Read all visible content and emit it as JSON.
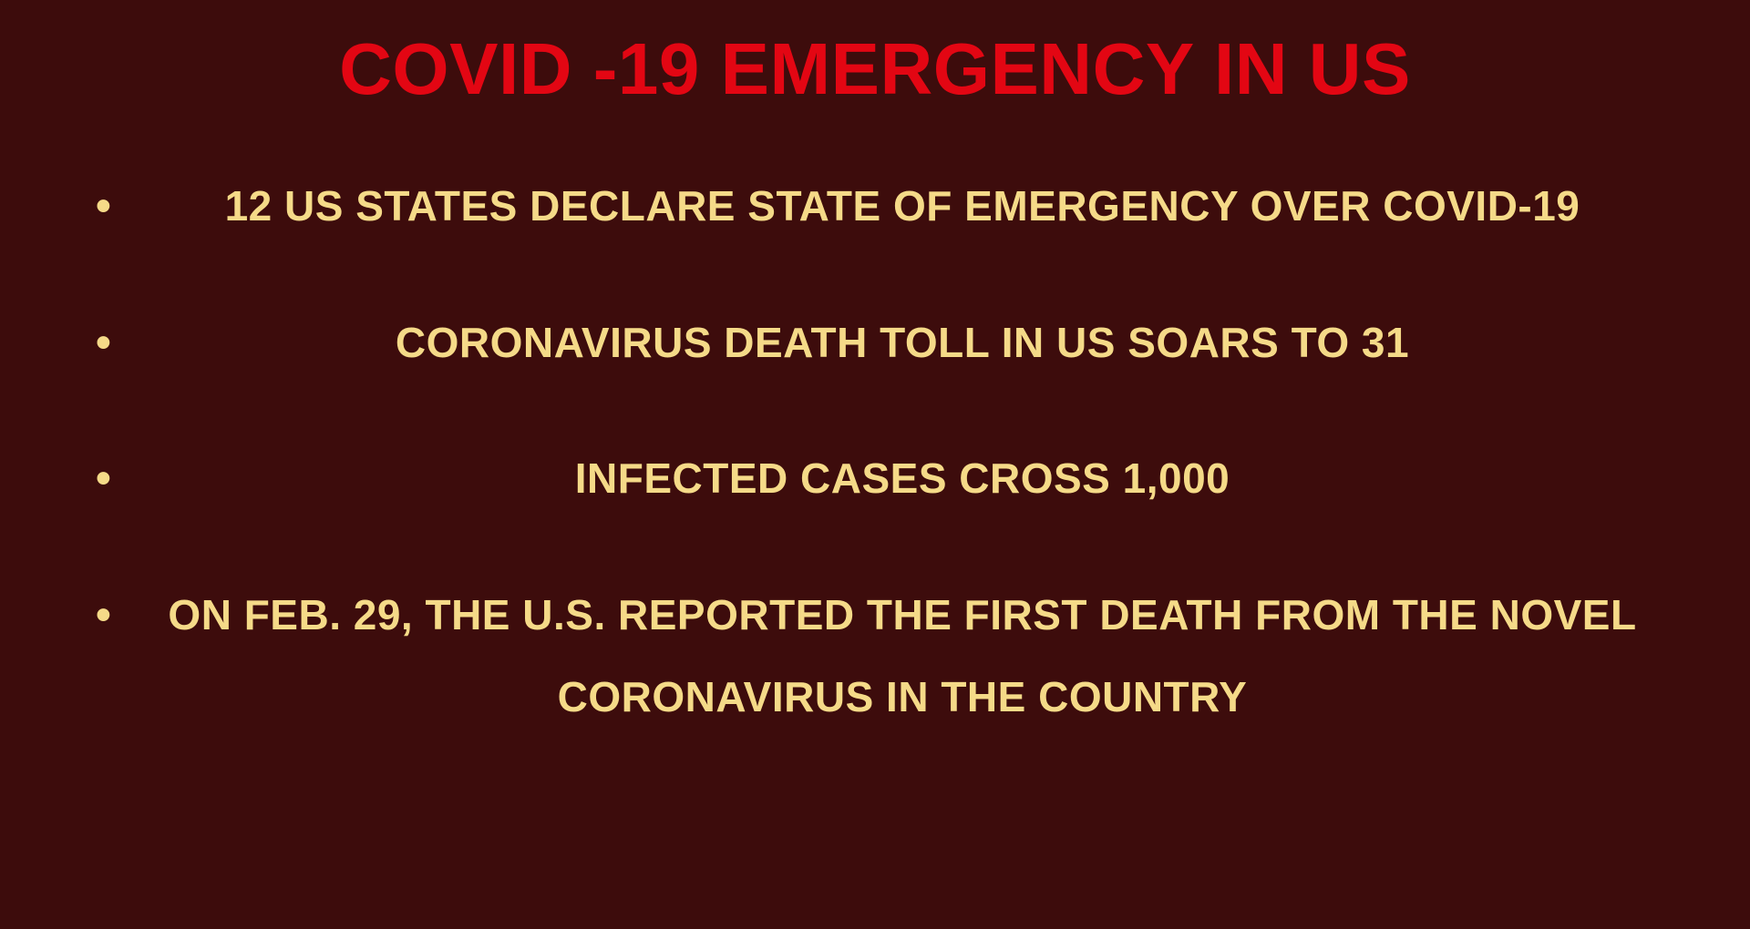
{
  "title": "COVID -19 EMERGENCY IN US",
  "bullets": [
    "12 US STATES DECLARE STATE OF EMERGENCY OVER COVID-19",
    "CORONAVIRUS DEATH TOLL IN US SOARS TO 31",
    "INFECTED CASES CROSS 1,000",
    "ON FEB. 29, THE U.S. REPORTED THE FIRST DEATH FROM THE NOVEL CORONAVIRUS IN THE COUNTRY"
  ],
  "colors": {
    "background": "#3d0c0c",
    "title": "#e30613",
    "bulletText": "#f5da88"
  },
  "typography": {
    "titleFontSize": 80,
    "bulletFontSize": 46,
    "fontWeight": 900,
    "fontFamily": "Arial Black"
  }
}
